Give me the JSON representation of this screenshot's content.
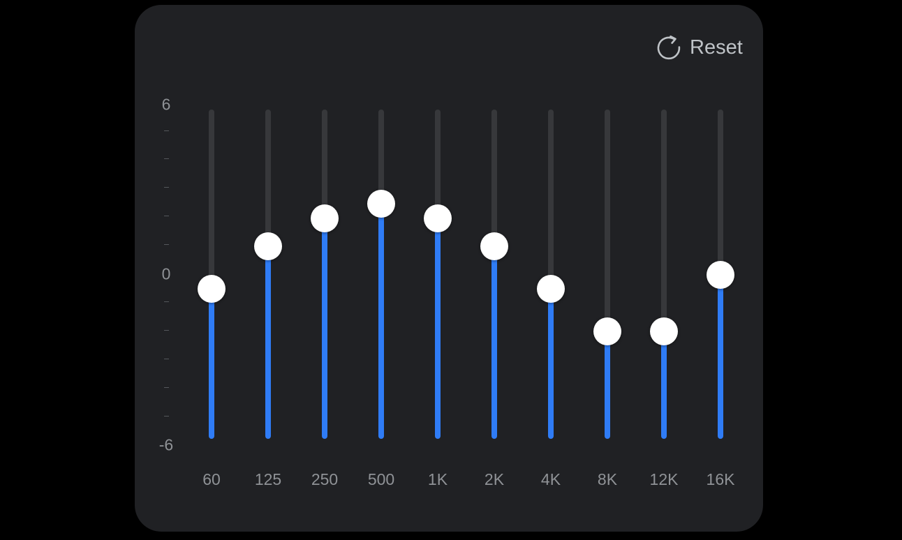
{
  "reset": {
    "label": "Reset",
    "icon": "reset-icon"
  },
  "scale": {
    "max_label": "6",
    "mid_label": "0",
    "min_label": "-6",
    "min": -6,
    "max": 6
  },
  "bands": [
    {
      "label": "60",
      "gain": -0.5
    },
    {
      "label": "125",
      "gain": 1.0
    },
    {
      "label": "250",
      "gain": 2.0
    },
    {
      "label": "500",
      "gain": 2.5
    },
    {
      "label": "1K",
      "gain": 2.0
    },
    {
      "label": "2K",
      "gain": 1.0
    },
    {
      "label": "4K",
      "gain": -0.5
    },
    {
      "label": "8K",
      "gain": -2.0
    },
    {
      "label": "12K",
      "gain": -2.0
    },
    {
      "label": "16K",
      "gain": 0.0
    }
  ],
  "colors": {
    "panel": "#202124",
    "track": "#37383b",
    "fill": "#2f7cf6",
    "knob": "#ffffff",
    "text": "#8f9296"
  }
}
